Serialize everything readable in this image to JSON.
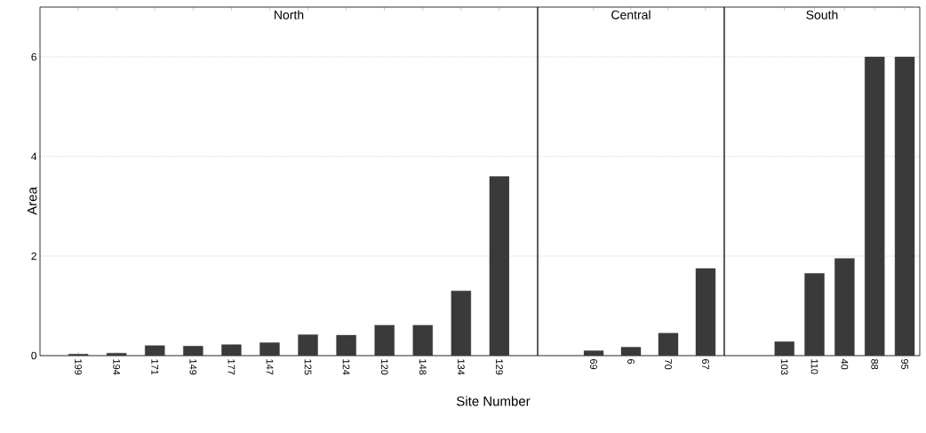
{
  "chart_data": [
    {
      "type": "bar",
      "title": "North",
      "xlabel": "Site Number",
      "ylabel": "Area",
      "categories": [
        "199",
        "194",
        "171",
        "149",
        "177",
        "147",
        "125",
        "124",
        "120",
        "148",
        "134",
        "129"
      ],
      "values": [
        0.03,
        0.05,
        0.2,
        0.19,
        0.22,
        0.26,
        0.42,
        0.41,
        0.61,
        0.61,
        1.3,
        3.6
      ],
      "color": "#3a3a3a",
      "ylim": [
        0,
        7
      ],
      "yticks": [
        0,
        2,
        4,
        6
      ],
      "grid": "y"
    },
    {
      "type": "bar",
      "title": "Central",
      "categories": [
        "69",
        "6",
        "70",
        "67"
      ],
      "values": [
        0.1,
        0.17,
        0.45,
        1.75
      ],
      "color": "#3a3a3a",
      "ylim": [
        0,
        7
      ],
      "yticks": [
        0,
        2,
        4,
        6
      ],
      "grid": "y",
      "tick_labels": "x"
    },
    {
      "type": "bar",
      "title": "South",
      "categories": [
        "103",
        "110",
        "40",
        "88",
        "95"
      ],
      "values": [
        0.28,
        1.65,
        1.95,
        6,
        6
      ],
      "color": "#3a3a3a",
      "ylim": [
        0,
        7
      ],
      "yticks": [
        0,
        2,
        4,
        6
      ],
      "grid": "y",
      "tick_labels": "x"
    }
  ]
}
